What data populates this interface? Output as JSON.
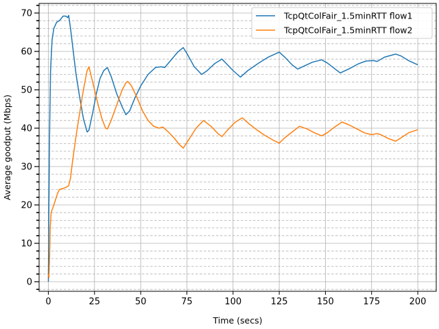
{
  "chart_data": {
    "type": "line",
    "title": "",
    "xlabel": "Time (secs)",
    "ylabel": "Average goodput (Mbps)",
    "xlim": [
      -5,
      210
    ],
    "ylim": [
      -2.5,
      72.5
    ],
    "xticks": [
      0,
      25,
      50,
      75,
      100,
      125,
      150,
      175,
      200
    ],
    "xtick_labels": [
      "0",
      "25",
      "50",
      "75",
      "100",
      "125",
      "150",
      "175",
      "200"
    ],
    "yticks": [
      0,
      10,
      20,
      30,
      40,
      50,
      60,
      70
    ],
    "ytick_labels": [
      "0",
      "10",
      "20",
      "30",
      "40",
      "50",
      "60",
      "70"
    ],
    "y_minor_step": 2,
    "grid": "major solid, y-minor dashed",
    "legend_position": "top-right",
    "series": [
      {
        "name": "TcpQtColFair_1.5minRTT flow1",
        "color": "#1f77b4",
        "points": [
          [
            0,
            0
          ],
          [
            0.3,
            20
          ],
          [
            0.7,
            40
          ],
          [
            1.2,
            55
          ],
          [
            2,
            63
          ],
          [
            3,
            66
          ],
          [
            4.5,
            67.6
          ],
          [
            6,
            68
          ],
          [
            8,
            69.2
          ],
          [
            9.5,
            69.2
          ],
          [
            10.5,
            68.8
          ],
          [
            11,
            69.4
          ],
          [
            12,
            66
          ],
          [
            13.5,
            60
          ],
          [
            15,
            54
          ],
          [
            17,
            48
          ],
          [
            19,
            42.5
          ],
          [
            21,
            39
          ],
          [
            22,
            39.5
          ],
          [
            24,
            44
          ],
          [
            26,
            49
          ],
          [
            28,
            53
          ],
          [
            30,
            55
          ],
          [
            32,
            55.8
          ],
          [
            34,
            53.5
          ],
          [
            37,
            49
          ],
          [
            40,
            45.5
          ],
          [
            42,
            43.5
          ],
          [
            44,
            44.5
          ],
          [
            47,
            48
          ],
          [
            50,
            51
          ],
          [
            54,
            54
          ],
          [
            58,
            55.8
          ],
          [
            61,
            56
          ],
          [
            63,
            55.8
          ],
          [
            66,
            57.5
          ],
          [
            70,
            59.8
          ],
          [
            73,
            61
          ],
          [
            75,
            59.5
          ],
          [
            79,
            56
          ],
          [
            83,
            54
          ],
          [
            86,
            55
          ],
          [
            90,
            56.8
          ],
          [
            94,
            58
          ],
          [
            97,
            56.5
          ],
          [
            100,
            55
          ],
          [
            104,
            53.3
          ],
          [
            108,
            55
          ],
          [
            114,
            57
          ],
          [
            119,
            58.5
          ],
          [
            125,
            59.8
          ],
          [
            128,
            58.5
          ],
          [
            132,
            56.5
          ],
          [
            135,
            55.4
          ],
          [
            139,
            56.3
          ],
          [
            143,
            57.2
          ],
          [
            148,
            57.8
          ],
          [
            151,
            57
          ],
          [
            155,
            55.5
          ],
          [
            158,
            54.4
          ],
          [
            163,
            55.5
          ],
          [
            168,
            56.8
          ],
          [
            172,
            57.5
          ],
          [
            176,
            57.6
          ],
          [
            178,
            57.4
          ],
          [
            182,
            58.5
          ],
          [
            188,
            59.3
          ],
          [
            191,
            58.8
          ],
          [
            195,
            57.6
          ],
          [
            200,
            56.5
          ]
        ]
      },
      {
        "name": "TcpQtColFair_1.5minRTT flow2",
        "color": "#ff7f0e",
        "points": [
          [
            0,
            2
          ],
          [
            0.3,
            1
          ],
          [
            0.6,
            5
          ],
          [
            1,
            14
          ],
          [
            1.5,
            18
          ],
          [
            3,
            20
          ],
          [
            4,
            21.5
          ],
          [
            5,
            23
          ],
          [
            6,
            24
          ],
          [
            8,
            24.3
          ],
          [
            10,
            24.7
          ],
          [
            11,
            25
          ],
          [
            12,
            27
          ],
          [
            13,
            31
          ],
          [
            15,
            38
          ],
          [
            17,
            44
          ],
          [
            19,
            50
          ],
          [
            21,
            55
          ],
          [
            22,
            56
          ],
          [
            23,
            54
          ],
          [
            25,
            50
          ],
          [
            27,
            46
          ],
          [
            29,
            42.5
          ],
          [
            31,
            40
          ],
          [
            32,
            39.8
          ],
          [
            34,
            42
          ],
          [
            37,
            46
          ],
          [
            40,
            50
          ],
          [
            42,
            51.8
          ],
          [
            43,
            52.2
          ],
          [
            45,
            51
          ],
          [
            48,
            48
          ],
          [
            51,
            44.5
          ],
          [
            54,
            42
          ],
          [
            57,
            40.5
          ],
          [
            60,
            40
          ],
          [
            62,
            40.3
          ],
          [
            65,
            39
          ],
          [
            68,
            37.5
          ],
          [
            71,
            35.7
          ],
          [
            73,
            34.8
          ],
          [
            76,
            37
          ],
          [
            80,
            40
          ],
          [
            84,
            42
          ],
          [
            88,
            40.5
          ],
          [
            92,
            38.5
          ],
          [
            94,
            37.8
          ],
          [
            97,
            39.5
          ],
          [
            101,
            41.5
          ],
          [
            105,
            42.7
          ],
          [
            109,
            41
          ],
          [
            113,
            39.5
          ],
          [
            117,
            38.2
          ],
          [
            122,
            36.8
          ],
          [
            125,
            36.1
          ],
          [
            128,
            37.5
          ],
          [
            132,
            39
          ],
          [
            136,
            40.5
          ],
          [
            140,
            39.8
          ],
          [
            144,
            38.8
          ],
          [
            148,
            38
          ],
          [
            151,
            38.8
          ],
          [
            155,
            40.3
          ],
          [
            159,
            41.6
          ],
          [
            163,
            40.8
          ],
          [
            167,
            39.8
          ],
          [
            171,
            38.8
          ],
          [
            175,
            38.3
          ],
          [
            178,
            38.6
          ],
          [
            180,
            38.3
          ],
          [
            184,
            37.3
          ],
          [
            188,
            36.6
          ],
          [
            191,
            37.5
          ],
          [
            195,
            38.8
          ],
          [
            200,
            39.6
          ]
        ]
      }
    ]
  }
}
